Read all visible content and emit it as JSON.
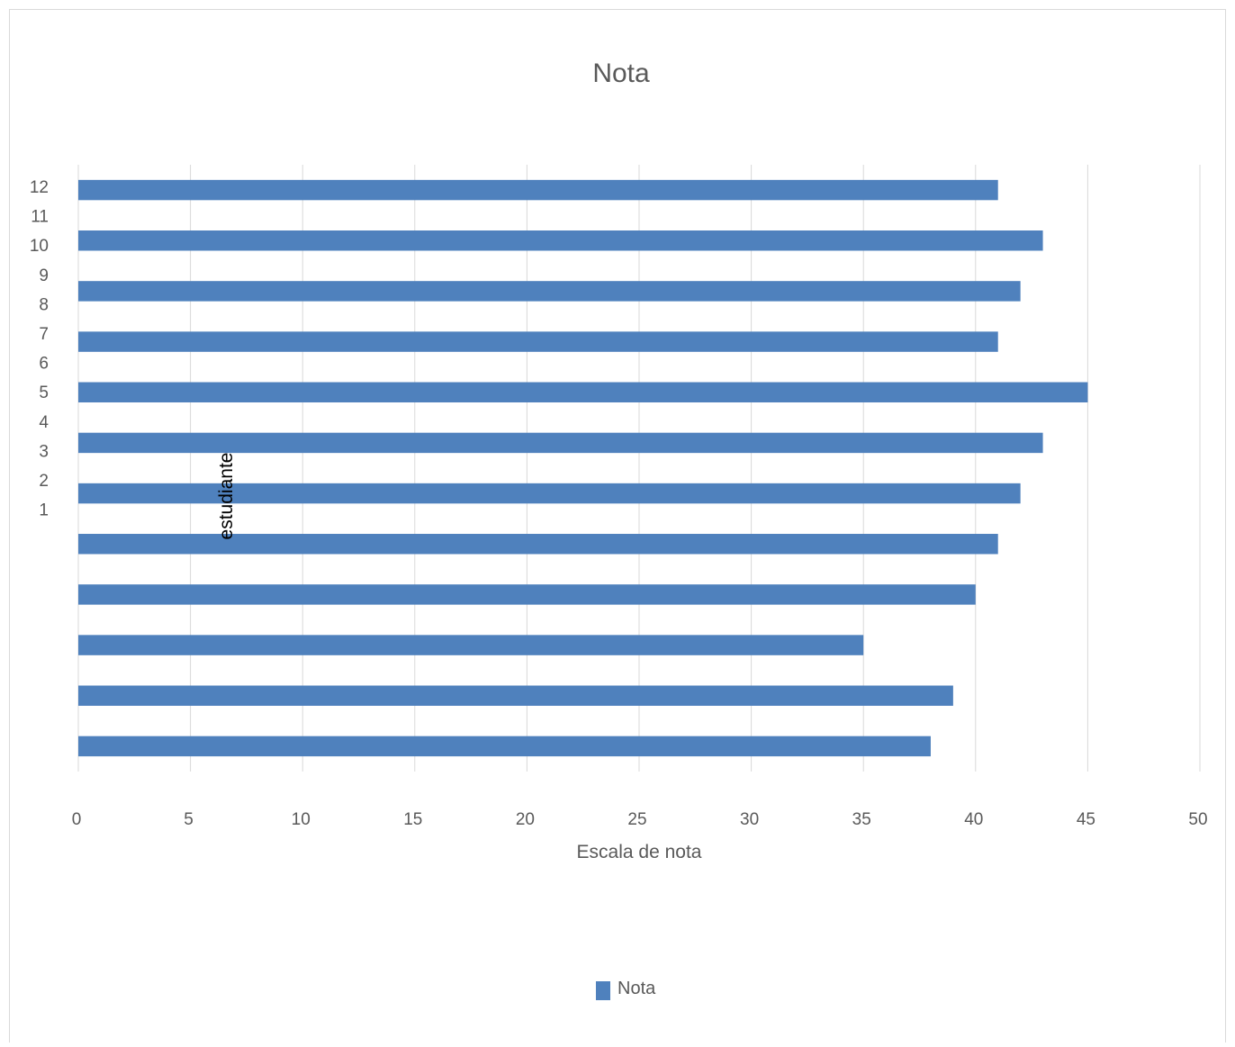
{
  "chart_data": {
    "type": "bar",
    "orientation": "horizontal",
    "title": "Nota",
    "xlabel": "Escala de nota",
    "ylabel": "estudiante",
    "xlim": [
      0,
      50
    ],
    "x_ticks": [
      0,
      5,
      10,
      15,
      20,
      25,
      30,
      35,
      40,
      45,
      50
    ],
    "y_tick_labels": [
      "1",
      "2",
      "3",
      "4",
      "5",
      "6",
      "7",
      "8",
      "9",
      "10",
      "11",
      "12"
    ],
    "series": [
      {
        "name": "Nota",
        "color": "#4f81bd",
        "values": [
          38,
          39,
          35,
          40,
          41,
          42,
          43,
          45,
          41,
          42,
          43,
          41
        ]
      }
    ],
    "grid": true,
    "legend_position": "bottom",
    "legend": [
      "Nota"
    ]
  }
}
